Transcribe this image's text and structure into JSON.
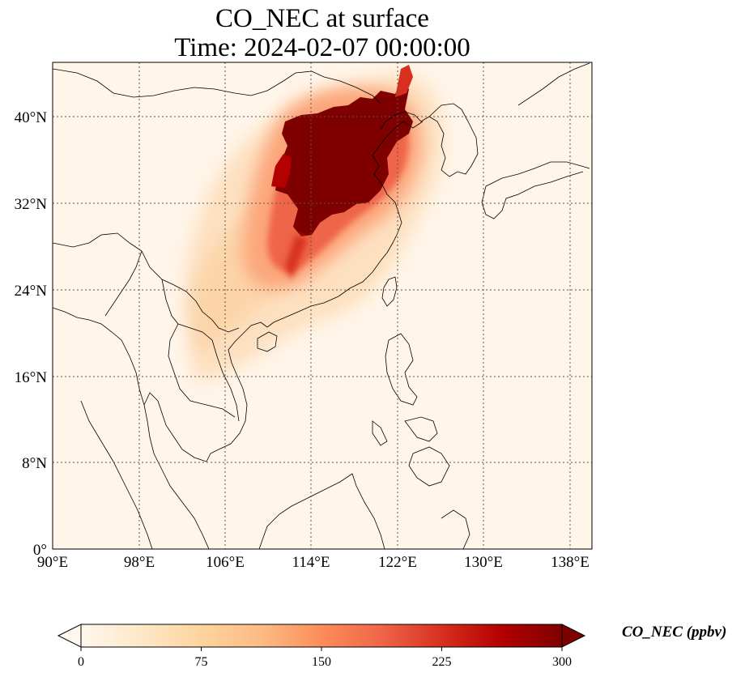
{
  "figure": {
    "title": "CO_NEC at surface",
    "subtitle": "Time: 2024-02-07 00:00:00",
    "lon_ticks": [
      "90°E",
      "98°E",
      "106°E",
      "114°E",
      "122°E",
      "130°E",
      "138°E"
    ],
    "lat_ticks": [
      "40°N",
      "32°N",
      "24°N",
      "16°N",
      "8°N",
      "0°"
    ],
    "lon_range": [
      90,
      140
    ],
    "lat_range": [
      0,
      45
    ]
  },
  "colorbar": {
    "label": "CO_NEC (ppbv)",
    "ticks": [
      "0",
      "75",
      "150",
      "225",
      "300"
    ],
    "range": [
      0,
      300
    ],
    "extend": "both",
    "colormap": [
      "#fff7ec",
      "#fee8c8",
      "#fdd49e",
      "#fdbb84",
      "#fc8d59",
      "#ef6548",
      "#d7301f",
      "#b30000",
      "#7f0000"
    ]
  }
}
